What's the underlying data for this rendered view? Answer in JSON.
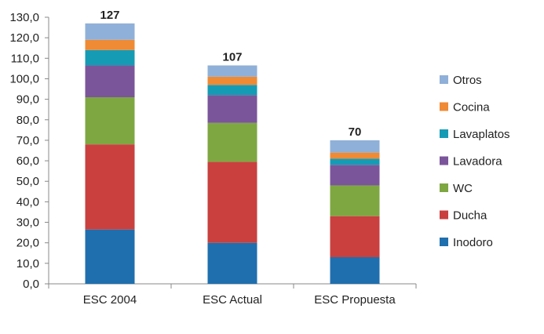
{
  "chart_data": {
    "type": "bar",
    "stacked": true,
    "categories": [
      "ESC 2004",
      "ESC Actual",
      "ESC Propuesta"
    ],
    "totals": [
      "127",
      "107",
      "70"
    ],
    "ylim": [
      0,
      130
    ],
    "ytick_step": 10,
    "ytick_labels": [
      "0,0",
      "10,0",
      "20,0",
      "30,0",
      "40,0",
      "50,0",
      "60,0",
      "70,0",
      "80,0",
      "90,0",
      "100,0",
      "110,0",
      "120,0",
      "130,0"
    ],
    "grid": false,
    "legend_position": "right",
    "series": [
      {
        "name": "Inodoro",
        "color": "#1f6fae",
        "values": [
          26.5,
          20.0,
          13.0
        ]
      },
      {
        "name": "Ducha",
        "color": "#c9403e",
        "values": [
          41.5,
          39.5,
          20.0
        ]
      },
      {
        "name": "WC",
        "color": "#7ea742",
        "values": [
          23.0,
          19.0,
          15.0
        ]
      },
      {
        "name": "Lavadora",
        "color": "#7b559a",
        "values": [
          15.5,
          13.5,
          10.0
        ]
      },
      {
        "name": "Lavaplatos",
        "color": "#169bb5",
        "values": [
          7.5,
          5.0,
          3.0
        ]
      },
      {
        "name": "Cocina",
        "color": "#ef8a35",
        "values": [
          5.0,
          4.0,
          3.0
        ]
      },
      {
        "name": "Otros",
        "color": "#8fb0d8",
        "values": [
          8.0,
          5.5,
          6.0
        ]
      }
    ]
  }
}
